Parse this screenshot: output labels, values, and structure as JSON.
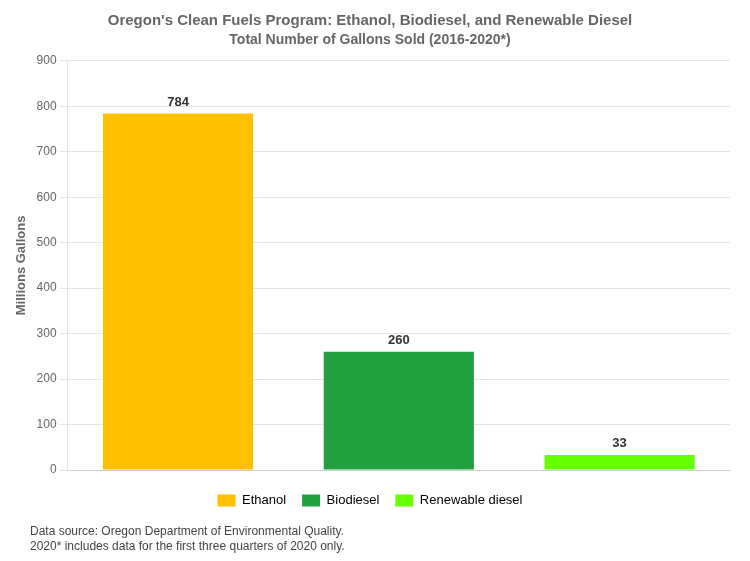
{
  "chart_data": {
    "type": "bar",
    "title": "Oregon's Clean Fuels Program: Ethanol, Biodiesel, and Renewable Diesel",
    "subtitle": "Total Number of Gallons Sold (2016-2020*)",
    "categories": [
      "Ethanol",
      "Biodiesel",
      "Renewable diesel"
    ],
    "values": [
      784,
      260,
      33
    ],
    "colors": [
      "#FFC000",
      "#22A040",
      "#66FF00"
    ],
    "ylabel": "Millions Gallons",
    "ylim": [
      0,
      900
    ],
    "yticks": [
      0,
      100,
      200,
      300,
      400,
      500,
      600,
      700,
      800,
      900
    ],
    "grid": true,
    "data_labels": true,
    "tick_labels": "y",
    "legend": "bottom",
    "annotations": [
      "Data source: Oregon Department of Environmental Quality.\n2020* includes data for the first three quarters of 2020 only."
    ]
  }
}
